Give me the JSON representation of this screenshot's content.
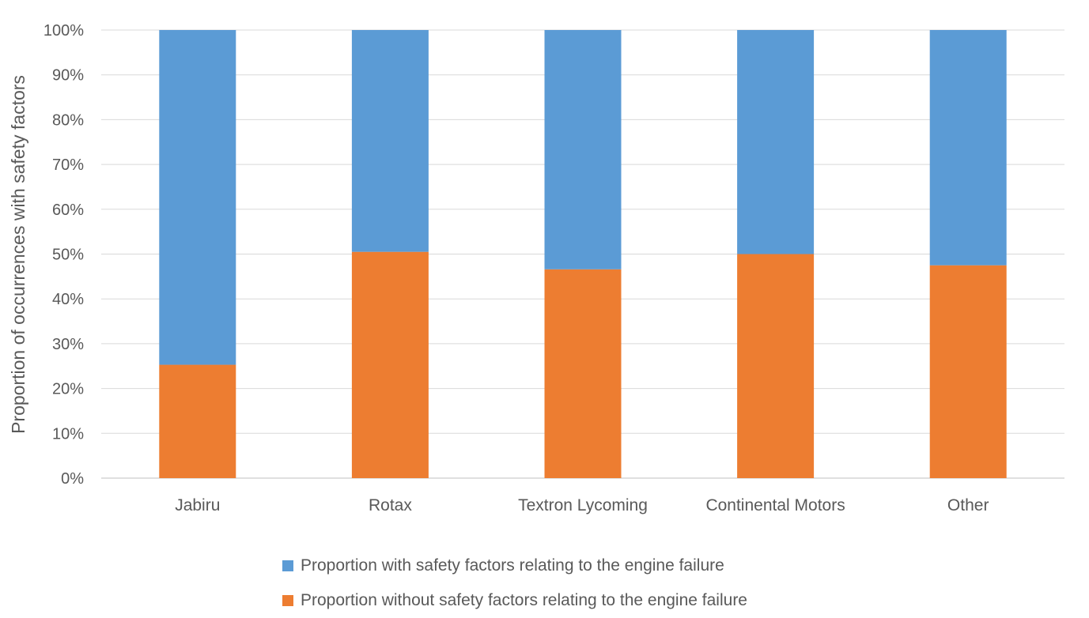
{
  "chart_data": {
    "type": "bar",
    "stacked": true,
    "title": "",
    "xlabel": "",
    "ylabel": "Proportion of occurrences with safety factors",
    "ylim": [
      0,
      100
    ],
    "y_ticks": [
      "0%",
      "10%",
      "20%",
      "30%",
      "40%",
      "50%",
      "60%",
      "70%",
      "80%",
      "90%",
      "100%"
    ],
    "grid": true,
    "legend_position": "bottom",
    "categories": [
      "Jabiru",
      "Rotax",
      "Textron Lycoming",
      "Continental Motors",
      "Other"
    ],
    "series": [
      {
        "name": "Proportion without safety factors relating to the engine failure",
        "color": "#ED7D31",
        "values": [
          25.3,
          50.5,
          46.6,
          50.0,
          47.5
        ]
      },
      {
        "name": "Proportion with safety factors relating to the engine failure",
        "color": "#5B9BD5",
        "values": [
          74.7,
          49.5,
          53.4,
          50.0,
          52.5
        ]
      }
    ],
    "legend_order": [
      1,
      0
    ]
  }
}
